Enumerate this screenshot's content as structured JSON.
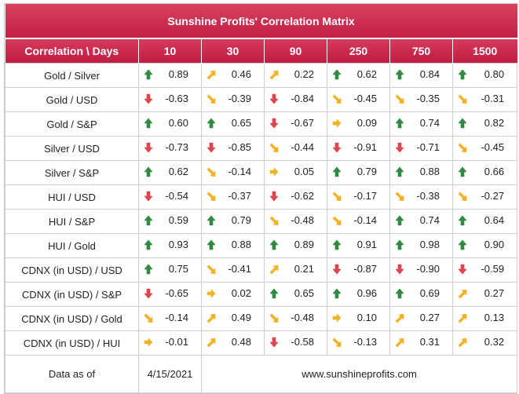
{
  "title": "Sunshine Profits' Correlation Matrix",
  "header": {
    "corner": "Correlation \\ Days",
    "days": [
      "10",
      "30",
      "90",
      "250",
      "750",
      "1500"
    ]
  },
  "colors": {
    "header": "#c8284d",
    "up": "#2e8b3e",
    "down": "#e0454a",
    "neutral": "#f2b227"
  },
  "rows": [
    {
      "label": "Gold / Silver",
      "cells": [
        [
          "up",
          "0.89"
        ],
        [
          "ur",
          "0.46"
        ],
        [
          "ur",
          "0.22"
        ],
        [
          "up",
          "0.62"
        ],
        [
          "up",
          "0.84"
        ],
        [
          "up",
          "0.80"
        ]
      ]
    },
    {
      "label": "Gold / USD",
      "cells": [
        [
          "down",
          "-0.63"
        ],
        [
          "dr",
          "-0.39"
        ],
        [
          "down",
          "-0.84"
        ],
        [
          "dr",
          "-0.45"
        ],
        [
          "dr",
          "-0.35"
        ],
        [
          "dr",
          "-0.31"
        ]
      ]
    },
    {
      "label": "Gold / S&P",
      "cells": [
        [
          "up",
          "0.60"
        ],
        [
          "up",
          "0.65"
        ],
        [
          "down",
          "-0.67"
        ],
        [
          "right",
          "0.09"
        ],
        [
          "up",
          "0.74"
        ],
        [
          "up",
          "0.82"
        ]
      ]
    },
    {
      "label": "Silver / USD",
      "cells": [
        [
          "down",
          "-0.73"
        ],
        [
          "down",
          "-0.85"
        ],
        [
          "dr",
          "-0.44"
        ],
        [
          "down",
          "-0.91"
        ],
        [
          "down",
          "-0.71"
        ],
        [
          "dr",
          "-0.45"
        ]
      ]
    },
    {
      "label": "Silver / S&P",
      "cells": [
        [
          "up",
          "0.62"
        ],
        [
          "dr",
          "-0.14"
        ],
        [
          "right",
          "0.05"
        ],
        [
          "up",
          "0.79"
        ],
        [
          "up",
          "0.88"
        ],
        [
          "up",
          "0.66"
        ]
      ]
    },
    {
      "label": "HUI / USD",
      "cells": [
        [
          "down",
          "-0.54"
        ],
        [
          "dr",
          "-0.37"
        ],
        [
          "down",
          "-0.62"
        ],
        [
          "dr",
          "-0.17"
        ],
        [
          "dr",
          "-0.38"
        ],
        [
          "dr",
          "-0.27"
        ]
      ]
    },
    {
      "label": "HUI / S&P",
      "cells": [
        [
          "up",
          "0.59"
        ],
        [
          "up",
          "0.79"
        ],
        [
          "dr",
          "-0.48"
        ],
        [
          "dr",
          "-0.14"
        ],
        [
          "up",
          "0.74"
        ],
        [
          "up",
          "0.64"
        ]
      ]
    },
    {
      "label": "HUI / Gold",
      "cells": [
        [
          "up",
          "0.93"
        ],
        [
          "up",
          "0.88"
        ],
        [
          "up",
          "0.89"
        ],
        [
          "up",
          "0.91"
        ],
        [
          "up",
          "0.98"
        ],
        [
          "up",
          "0.90"
        ]
      ]
    },
    {
      "label": "CDNX (in USD) / USD",
      "cells": [
        [
          "up",
          "0.75"
        ],
        [
          "dr",
          "-0.41"
        ],
        [
          "ur",
          "0.21"
        ],
        [
          "down",
          "-0.87"
        ],
        [
          "down",
          "-0.90"
        ],
        [
          "down",
          "-0.59"
        ]
      ]
    },
    {
      "label": "CDNX (in USD) / S&P",
      "cells": [
        [
          "down",
          "-0.65"
        ],
        [
          "right",
          "0.02"
        ],
        [
          "up",
          "0.65"
        ],
        [
          "up",
          "0.96"
        ],
        [
          "up",
          "0.69"
        ],
        [
          "ur",
          "0.27"
        ]
      ]
    },
    {
      "label": "CDNX (in USD) / Gold",
      "cells": [
        [
          "dr",
          "-0.14"
        ],
        [
          "ur",
          "0.49"
        ],
        [
          "dr",
          "-0.48"
        ],
        [
          "right",
          "0.10"
        ],
        [
          "ur",
          "0.27"
        ],
        [
          "ur",
          "0.13"
        ]
      ]
    },
    {
      "label": "CDNX (in USD) / HUI",
      "cells": [
        [
          "right",
          "-0.01"
        ],
        [
          "ur",
          "0.48"
        ],
        [
          "down",
          "-0.58"
        ],
        [
          "dr",
          "-0.13"
        ],
        [
          "ur",
          "0.31"
        ],
        [
          "ur",
          "0.32"
        ]
      ]
    }
  ],
  "footer": {
    "label": "Data as of",
    "date": "4/15/2021",
    "site": "www.sunshineprofits.com"
  }
}
